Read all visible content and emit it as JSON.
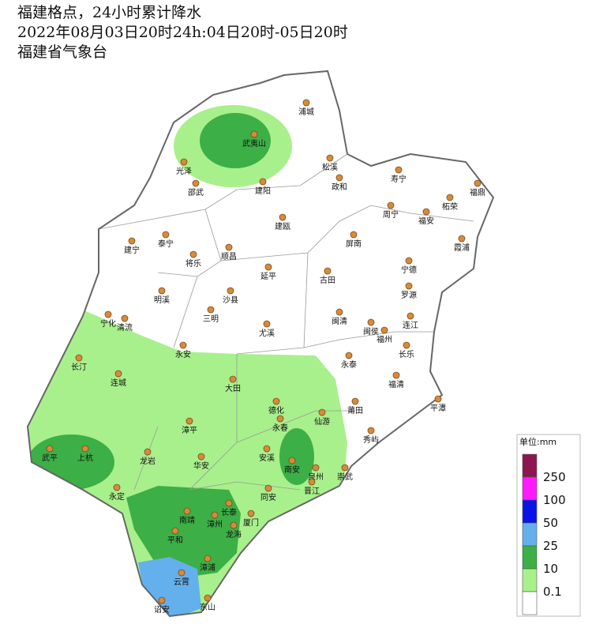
{
  "header": {
    "title": "福建格点，24小时累计降水",
    "period": "2022年08月03日20时24h:04日20时-05日20时",
    "issuer": "福建省气象台"
  },
  "cities": [
    "浦城",
    "武夷山",
    "光泽",
    "松溪",
    "政和",
    "寿宁",
    "福鼎",
    "邵武",
    "建阳",
    "周宁",
    "柘荣",
    "福安",
    "泰宁",
    "建瓯",
    "屏南",
    "霞浦",
    "建宁",
    "将乐",
    "顺昌",
    "延平",
    "古田",
    "宁德",
    "罗源",
    "明溪",
    "沙县",
    "三明",
    "宁化",
    "清流",
    "尤溪",
    "闽清",
    "闽侯",
    "连江",
    "福州",
    "永安",
    "长乐",
    "长汀",
    "连城",
    "永泰",
    "福清",
    "大田",
    "平潭",
    "德化",
    "永春",
    "莆田",
    "仙游",
    "漳平",
    "秀屿",
    "武平",
    "上杭",
    "龙岩",
    "华安",
    "安溪",
    "南安",
    "泉州",
    "崇武",
    "晋江",
    "永定",
    "同安",
    "长泰",
    "南靖",
    "漳州",
    "厦门",
    "龙海",
    "平和",
    "漳浦",
    "云霄",
    "诏安",
    "东山"
  ],
  "legend": {
    "unit": "单位:mm",
    "thresholds": [
      250,
      100,
      50,
      25,
      10,
      0.1
    ],
    "colors": [
      "#8c1550",
      "#ff19ff",
      "#0a14e6",
      "#63b0ec",
      "#3caf46",
      "#a8f08c",
      "#ffffff"
    ]
  }
}
